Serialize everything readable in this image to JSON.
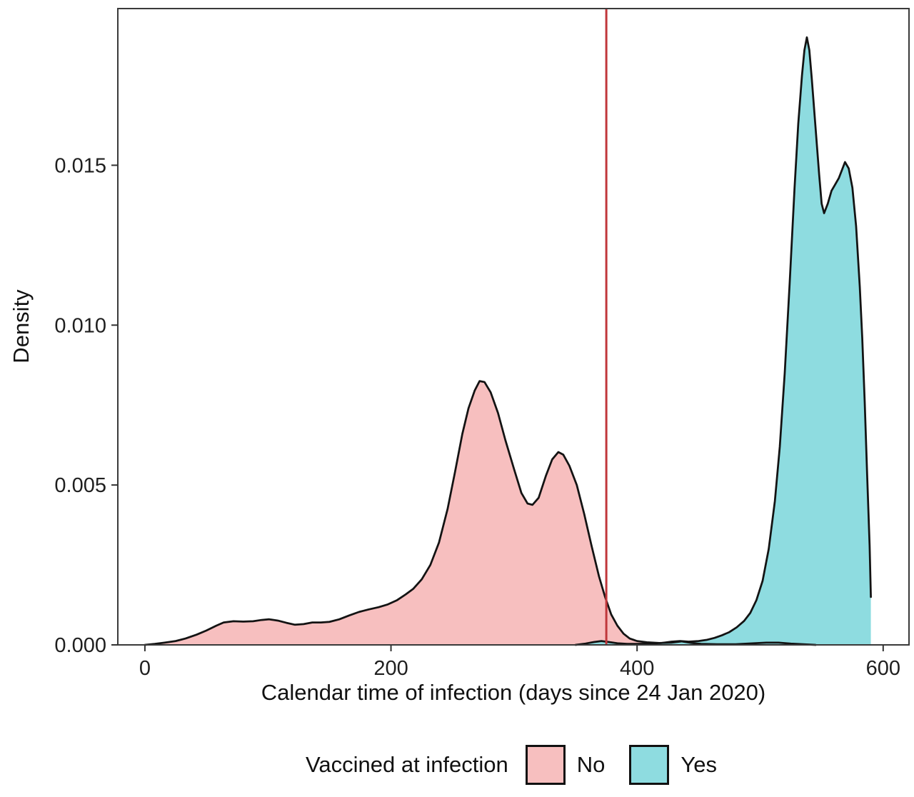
{
  "figure": {
    "y_axis_title": "Density",
    "x_axis_title": "Calendar time of infection (days since 24 Jan 2020)",
    "legend": {
      "title": "Vaccined at infection",
      "items": [
        {
          "label": "No",
          "color": "#F7BFBF"
        },
        {
          "label": "Yes",
          "color": "#8EDCE0"
        }
      ]
    }
  },
  "chart_data": {
    "type": "area",
    "subtype": "kernel-density",
    "title": "",
    "xlabel": "Calendar time of infection (days since 24 Jan 2020)",
    "ylabel": "Density",
    "xlim": [
      -22,
      621
    ],
    "ylim": [
      0,
      0.0199
    ],
    "grid": "off",
    "legend_position": "bottom",
    "x_ticks": [
      {
        "value": 0,
        "label": "0"
      },
      {
        "value": 200,
        "label": "200"
      },
      {
        "value": 400,
        "label": "400"
      },
      {
        "value": 600,
        "label": "600"
      }
    ],
    "y_ticks": [
      {
        "value": 0.0,
        "label": "0.000"
      },
      {
        "value": 0.005,
        "label": "0.005"
      },
      {
        "value": 0.01,
        "label": "0.010"
      },
      {
        "value": 0.015,
        "label": "0.015"
      }
    ],
    "vline": {
      "x": 375,
      "color": "#C0373B",
      "width": 3
    },
    "style": {
      "panel_border_color": "#3A3A3A",
      "panel_border_width": 2,
      "curve_stroke": "#131313",
      "curve_stroke_width": 2.75,
      "tick_color": "#333333",
      "tick_label_color": "#1f1f1f"
    },
    "series": [
      {
        "name": "No",
        "fill": "#F7BFBF",
        "points": [
          [
            0,
            0
          ],
          [
            8,
            3e-05
          ],
          [
            16,
            7e-05
          ],
          [
            25,
            0.00012
          ],
          [
            33,
            0.0002
          ],
          [
            42,
            0.00032
          ],
          [
            50,
            0.00045
          ],
          [
            58,
            0.0006
          ],
          [
            64,
            0.0007
          ],
          [
            72,
            0.00074
          ],
          [
            80,
            0.00073
          ],
          [
            88,
            0.00074
          ],
          [
            95,
            0.00078
          ],
          [
            101,
            0.0008
          ],
          [
            108,
            0.00076
          ],
          [
            115,
            0.00069
          ],
          [
            122,
            0.00063
          ],
          [
            129,
            0.00065
          ],
          [
            136,
            0.0007
          ],
          [
            143,
            0.0007
          ],
          [
            150,
            0.00072
          ],
          [
            158,
            0.0008
          ],
          [
            166,
            0.00092
          ],
          [
            174,
            0.00103
          ],
          [
            182,
            0.00111
          ],
          [
            190,
            0.00118
          ],
          [
            197,
            0.00126
          ],
          [
            205,
            0.0014
          ],
          [
            212,
            0.00158
          ],
          [
            218,
            0.00175
          ],
          [
            225,
            0.00205
          ],
          [
            232,
            0.0025
          ],
          [
            239,
            0.0032
          ],
          [
            246,
            0.00425
          ],
          [
            252,
            0.0054
          ],
          [
            258,
            0.0066
          ],
          [
            263,
            0.0074
          ],
          [
            268,
            0.00795
          ],
          [
            272,
            0.00825
          ],
          [
            276,
            0.00822
          ],
          [
            281,
            0.0079
          ],
          [
            287,
            0.00725
          ],
          [
            293,
            0.0064
          ],
          [
            300,
            0.0055
          ],
          [
            306,
            0.00475
          ],
          [
            311,
            0.00442
          ],
          [
            315,
            0.00438
          ],
          [
            320,
            0.0046
          ],
          [
            326,
            0.0053
          ],
          [
            331,
            0.0058
          ],
          [
            336,
            0.00603
          ],
          [
            340,
            0.00595
          ],
          [
            345,
            0.0056
          ],
          [
            351,
            0.005
          ],
          [
            357,
            0.0041
          ],
          [
            363,
            0.0031
          ],
          [
            369,
            0.00215
          ],
          [
            374,
            0.0015
          ],
          [
            379,
            0.00095
          ],
          [
            384,
            0.0006
          ],
          [
            389,
            0.00035
          ],
          [
            394,
            0.0002
          ],
          [
            400,
            0.00012
          ],
          [
            408,
            8e-05
          ],
          [
            418,
            6e-05
          ],
          [
            428,
            7e-05
          ],
          [
            436,
            0.00011
          ],
          [
            444,
            6e-05
          ],
          [
            452,
            3e-05
          ],
          [
            465,
            2e-05
          ],
          [
            480,
            2e-05
          ],
          [
            495,
            5e-05
          ],
          [
            505,
            7e-05
          ],
          [
            515,
            7e-05
          ],
          [
            525,
            4e-05
          ],
          [
            535,
            2e-05
          ],
          [
            545,
            0
          ]
        ]
      },
      {
        "name": "Yes",
        "fill": "#8EDCE0",
        "points": [
          [
            350,
            0
          ],
          [
            358,
            4e-05
          ],
          [
            365,
            9e-05
          ],
          [
            371,
            0.00012
          ],
          [
            377,
            9e-05
          ],
          [
            384,
            5e-05
          ],
          [
            392,
            3e-05
          ],
          [
            400,
            3e-05
          ],
          [
            410,
            4e-05
          ],
          [
            420,
            6e-05
          ],
          [
            428,
            0.0001
          ],
          [
            435,
            0.00012
          ],
          [
            442,
            0.0001
          ],
          [
            450,
            0.00012
          ],
          [
            457,
            0.00016
          ],
          [
            463,
            0.00022
          ],
          [
            469,
            0.0003
          ],
          [
            475,
            0.0004
          ],
          [
            481,
            0.00055
          ],
          [
            487,
            0.00075
          ],
          [
            492,
            0.001
          ],
          [
            497,
            0.0014
          ],
          [
            502,
            0.002
          ],
          [
            507,
            0.003
          ],
          [
            512,
            0.0045
          ],
          [
            516,
            0.0062
          ],
          [
            520,
            0.0085
          ],
          [
            524,
            0.0113
          ],
          [
            528,
            0.0143
          ],
          [
            531,
            0.0163
          ],
          [
            534,
            0.0178
          ],
          [
            536,
            0.0186
          ],
          [
            538,
            0.019
          ],
          [
            540,
            0.0186
          ],
          [
            542,
            0.0177
          ],
          [
            545,
            0.0162
          ],
          [
            548,
            0.0147
          ],
          [
            550,
            0.0138
          ],
          [
            552,
            0.0135
          ],
          [
            555,
            0.0138
          ],
          [
            558,
            0.0142
          ],
          [
            561,
            0.0144
          ],
          [
            564,
            0.0146
          ],
          [
            567,
            0.0149
          ],
          [
            569,
            0.0151
          ],
          [
            572,
            0.0149
          ],
          [
            575,
            0.0143
          ],
          [
            578,
            0.0131
          ],
          [
            581,
            0.0112
          ],
          [
            583,
            0.0096
          ],
          [
            585,
            0.0076
          ],
          [
            587,
            0.0053
          ],
          [
            589,
            0.0031
          ],
          [
            590,
            0.0015
          ]
        ]
      }
    ]
  },
  "layout_note": "density plot, red vertical reference line at day 375"
}
